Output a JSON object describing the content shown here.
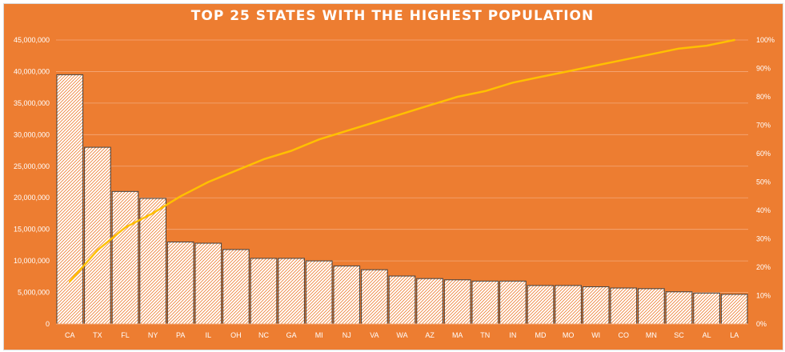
{
  "chart_data": {
    "type": "bar",
    "title": "TOP 25 STATES WITH THE HIGHEST POPULATION",
    "categories": [
      "CA",
      "TX",
      "FL",
      "NY",
      "PA",
      "IL",
      "OH",
      "NC",
      "GA",
      "MI",
      "NJ",
      "VA",
      "WA",
      "AZ",
      "MA",
      "TN",
      "IN",
      "MD",
      "MO",
      "WI",
      "CO",
      "MN",
      "SC",
      "AL",
      "LA"
    ],
    "series": [
      {
        "type": "bar",
        "axis": "left",
        "values": [
          39500000,
          28000000,
          21000000,
          19900000,
          13000000,
          12800000,
          11800000,
          10400000,
          10400000,
          10000000,
          9200000,
          8600000,
          7600000,
          7200000,
          7000000,
          6800000,
          6800000,
          6100000,
          6100000,
          5900000,
          5700000,
          5600000,
          5100000,
          4900000,
          4700000
        ]
      },
      {
        "type": "line",
        "axis": "right",
        "values": [
          0.15,
          0.26,
          0.34,
          0.39,
          0.45,
          0.5,
          0.54,
          0.58,
          0.61,
          0.65,
          0.68,
          0.71,
          0.74,
          0.77,
          0.8,
          0.82,
          0.85,
          0.87,
          0.89,
          0.91,
          0.93,
          0.95,
          0.97,
          0.98,
          1.0
        ]
      }
    ],
    "y_left": {
      "min": 0,
      "max": 45000000,
      "tick_labels": [
        "0",
        "5,000,000",
        "10,000,000",
        "15,000,000",
        "20,000,000",
        "25,000,000",
        "30,000,000",
        "35,000,000",
        "40,000,000",
        "45,000,000"
      ]
    },
    "y_right": {
      "min": 0,
      "max": 1,
      "tick_labels": [
        "0%",
        "10%",
        "20%",
        "30%",
        "40%",
        "50%",
        "60%",
        "70%",
        "80%",
        "90%",
        "100%"
      ]
    },
    "xlabel": "",
    "ylabel": "",
    "grid": true,
    "legend": "none",
    "colors": {
      "background": "#ed7d31",
      "bar_fill": "#ffffff",
      "bar_hatch": "#ed7d31",
      "bar_border": "#404040",
      "line": "#ffc000",
      "grid": "#f4a97a",
      "text": "#ffffff"
    }
  }
}
